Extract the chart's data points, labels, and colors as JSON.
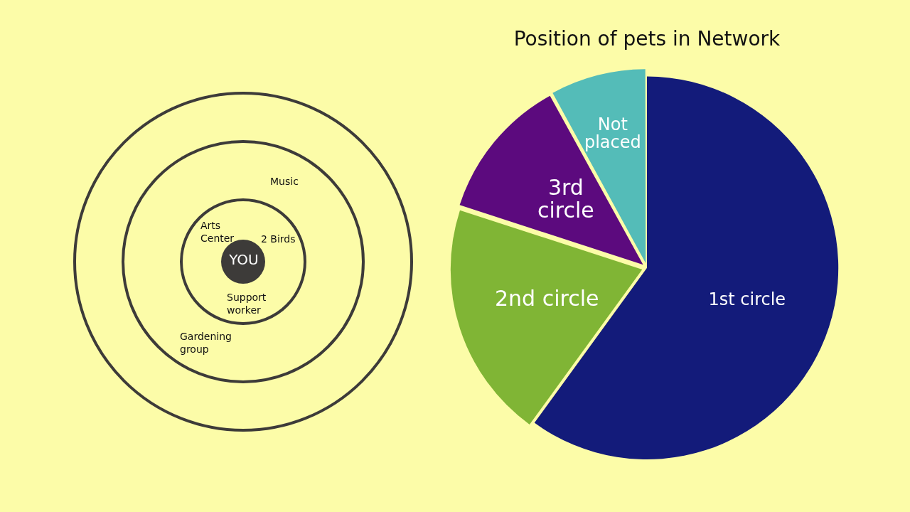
{
  "chart_data": [
    {
      "type": "other",
      "annotations": [
        "Music",
        "Arts Center",
        "2 Birds",
        "YOU",
        "Support worker",
        "Gardening group"
      ]
    },
    {
      "type": "pie",
      "title": "Position of pets in Network",
      "categories": [
        "1st circle",
        "2nd circle",
        "3rd circle",
        "Not placed"
      ],
      "values": [
        60,
        20,
        12,
        8
      ],
      "colors": [
        "#131b7a",
        "#80b535",
        "#5c0a7e",
        "#54bcb8"
      ],
      "legend": false
    }
  ]
}
